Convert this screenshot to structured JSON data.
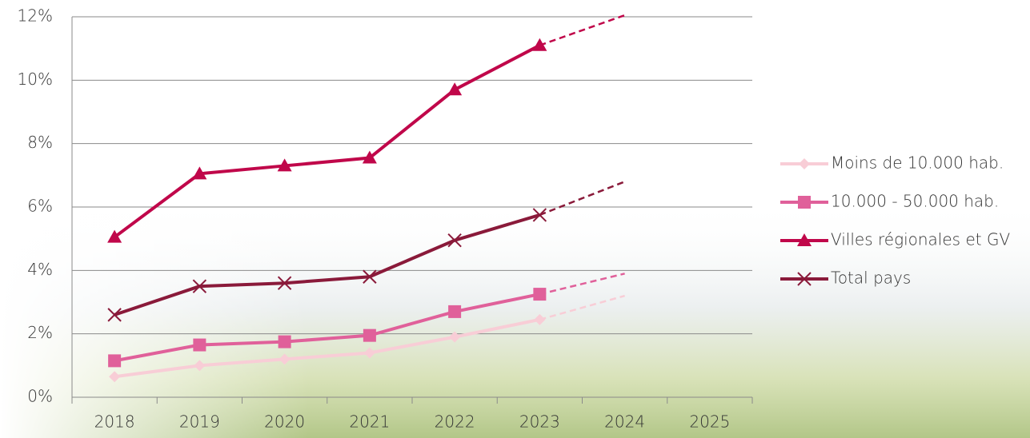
{
  "chart_data": {
    "type": "line",
    "categories": [
      "2018",
      "2019",
      "2020",
      "2021",
      "2022",
      "2023",
      "2024",
      "2025"
    ],
    "ylim": [
      0,
      12
    ],
    "yticks": [
      {
        "value": 0,
        "label": "0%"
      },
      {
        "value": 2,
        "label": "2%"
      },
      {
        "value": 4,
        "label": "4%"
      },
      {
        "value": 6,
        "label": "6%"
      },
      {
        "value": 8,
        "label": "8%"
      },
      {
        "value": 10,
        "label": "10%"
      },
      {
        "value": 12,
        "label": "12%"
      }
    ],
    "grid": true,
    "legend": "right",
    "series": [
      {
        "name": "Moins de 10.000 hab.",
        "color": "#f8cdd6",
        "marker": "diamond",
        "values": [
          0.65,
          1.0,
          1.2,
          1.4,
          1.9,
          2.45,
          null,
          null
        ],
        "trend": [
          null,
          null,
          null,
          null,
          null,
          2.45,
          3.2,
          null
        ]
      },
      {
        "name": "10.000 - 50.000 hab.",
        "color": "#e0609a",
        "marker": "square",
        "values": [
          1.15,
          1.65,
          1.75,
          1.95,
          2.7,
          3.25,
          null,
          null
        ],
        "trend": [
          null,
          null,
          null,
          null,
          null,
          3.25,
          3.9,
          null
        ]
      },
      {
        "name": "Villes régionales et GV",
        "color": "#c0074a",
        "marker": "triangle",
        "values": [
          5.05,
          7.05,
          7.3,
          7.55,
          9.7,
          11.1,
          null,
          null
        ],
        "trend": [
          null,
          null,
          null,
          null,
          null,
          11.1,
          12.05,
          null
        ]
      },
      {
        "name": "Total pays",
        "color": "#8a1a3a",
        "marker": "x",
        "values": [
          2.6,
          3.5,
          3.6,
          3.8,
          4.95,
          5.75,
          null,
          null
        ],
        "trend": [
          null,
          null,
          null,
          null,
          null,
          5.75,
          6.8,
          null
        ]
      }
    ]
  }
}
